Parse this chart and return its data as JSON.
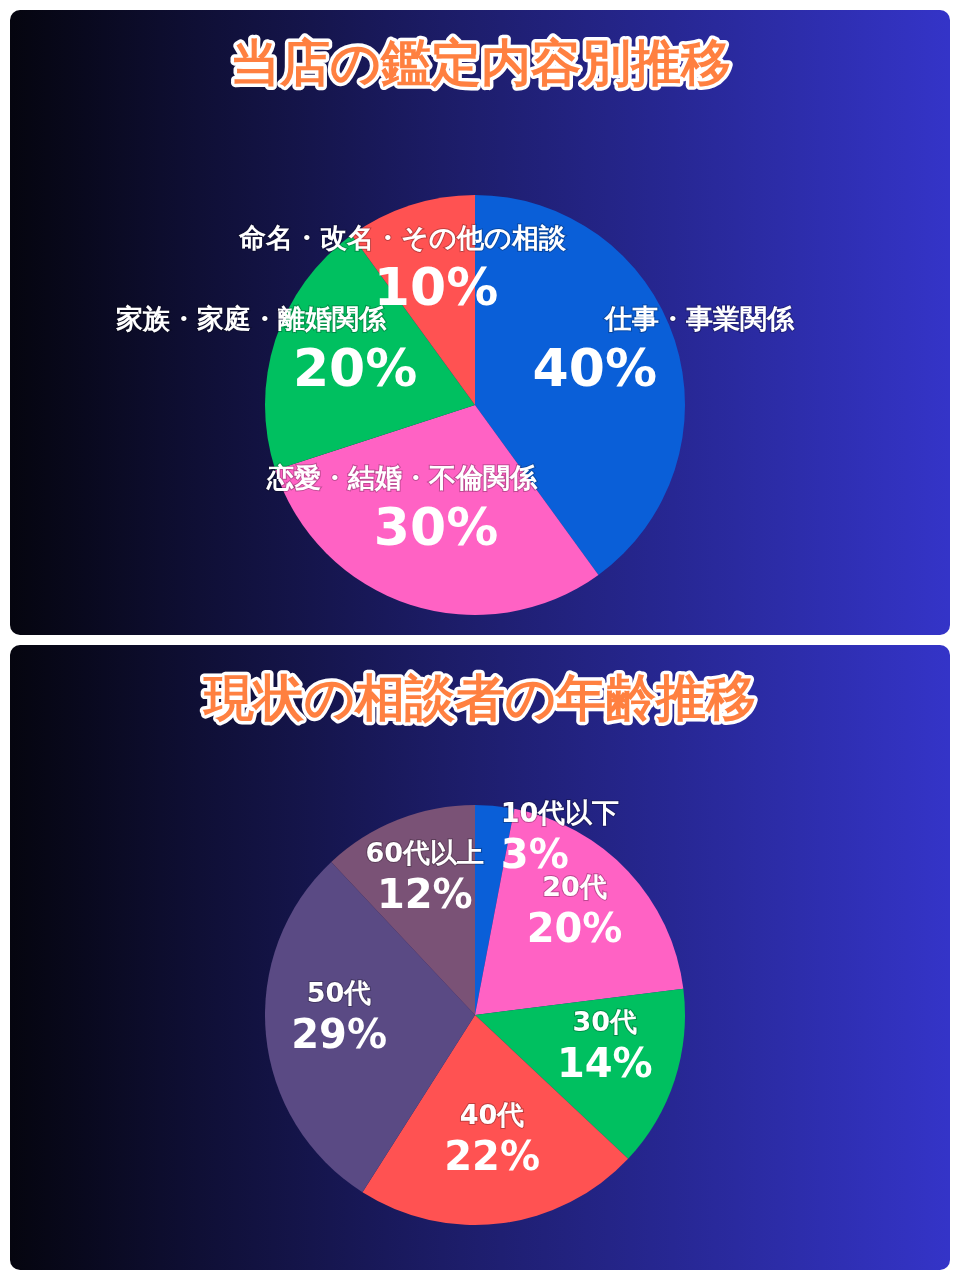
{
  "chart_data": [
    {
      "type": "pie",
      "title": "当店の鑑定内容別推移",
      "categories": [
        "仕事・事業関係",
        "恋愛・結婚・不倫関係",
        "家族・家庭・離婚関係",
        "命名・改名・その他の相談"
      ],
      "values": [
        40,
        30,
        20,
        10
      ],
      "value_labels": [
        "40%",
        "30%",
        "20%",
        "10%"
      ],
      "colors": [
        "#0a5fd8",
        "#ff62c4",
        "#00c060",
        "#ff5252"
      ]
    },
    {
      "type": "pie",
      "title": "現状の相談者の年齢推移",
      "categories": [
        "10代以下",
        "20代",
        "30代",
        "40代",
        "50代",
        "60代以上"
      ],
      "values": [
        3,
        20,
        14,
        22,
        29,
        12
      ],
      "value_labels": [
        "3%",
        "20%",
        "14%",
        "22%",
        "29%",
        "12%"
      ],
      "colors": [
        "#0a5fd8",
        "#ff62c4",
        "#00c060",
        "#ff5252",
        "#5a4a84",
        "#7a5276"
      ]
    }
  ]
}
